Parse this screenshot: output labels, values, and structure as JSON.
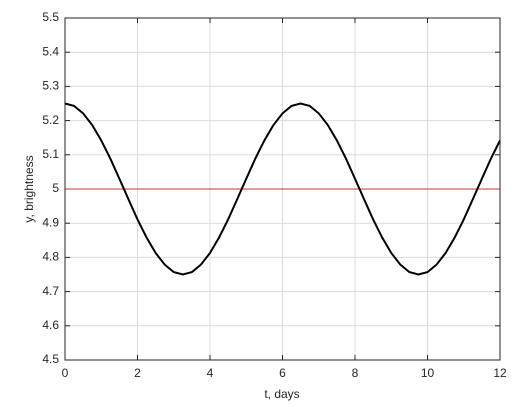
{
  "chart_data": {
    "type": "line",
    "xlabel": "t, days",
    "ylabel": "y, brightness",
    "x": [
      0,
      0.25,
      0.5,
      0.75,
      1,
      1.25,
      1.5,
      1.75,
      2,
      2.25,
      2.5,
      2.75,
      3,
      3.25,
      3.5,
      3.75,
      4,
      4.25,
      4.5,
      4.75,
      5,
      5.25,
      5.5,
      5.75,
      6,
      6.25,
      6.5,
      6.75,
      7,
      7.25,
      7.5,
      7.75,
      8,
      8.25,
      8.5,
      8.75,
      9,
      9.25,
      9.5,
      9.75,
      10,
      10.25,
      10.5,
      10.75,
      11,
      11.25,
      11.5,
      11.75,
      12
    ],
    "series": [
      {
        "color": "#000000",
        "values": [
          5.25,
          5.243,
          5.221,
          5.187,
          5.142,
          5.089,
          5.03,
          4.97,
          4.911,
          4.858,
          4.813,
          4.779,
          4.757,
          4.75,
          4.757,
          4.779,
          4.813,
          4.858,
          4.911,
          4.97,
          5.03,
          5.089,
          5.142,
          5.187,
          5.221,
          5.243,
          5.25,
          5.243,
          5.221,
          5.187,
          5.142,
          5.089,
          5.03,
          4.97,
          4.911,
          4.858,
          4.813,
          4.779,
          4.757,
          4.75,
          4.757,
          4.779,
          4.813,
          4.858,
          4.911,
          4.97,
          5.03,
          5.089,
          5.142
        ]
      },
      {
        "color": "#c0392b",
        "values": [
          5,
          5,
          5,
          5,
          5,
          5,
          5,
          5,
          5,
          5,
          5,
          5,
          5,
          5,
          5,
          5,
          5,
          5,
          5,
          5,
          5,
          5,
          5,
          5,
          5,
          5,
          5,
          5,
          5,
          5,
          5,
          5,
          5,
          5,
          5,
          5,
          5,
          5,
          5,
          5,
          5,
          5,
          5,
          5,
          5,
          5,
          5,
          5,
          5
        ]
      }
    ],
    "xlim": [
      0,
      12
    ],
    "xticks": [
      0,
      2,
      4,
      6,
      8,
      10,
      12
    ],
    "ylim": [
      4.5,
      5.5
    ],
    "yticks": [
      4.5,
      4.6,
      4.7,
      4.8,
      4.9,
      5,
      5.1,
      5.2,
      5.3,
      5.4,
      5.5
    ],
    "grid": true
  }
}
